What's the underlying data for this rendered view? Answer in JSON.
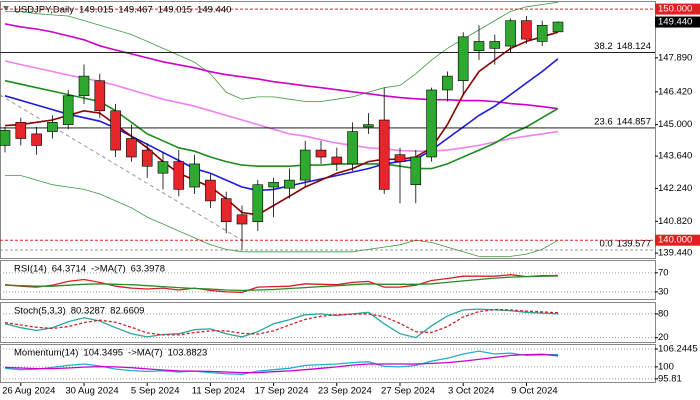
{
  "chart_data": [
    {
      "type": "candlestick",
      "title": "USDJPY,Daily",
      "close_label": "149.440",
      "up_color": "#2fa82f",
      "down_color": "#e5262a",
      "categories": [
        null,
        "26 Aug 2024",
        null,
        null,
        null,
        "30 Aug 2024",
        null,
        null,
        null,
        "5 Sep 2024",
        null,
        null,
        null,
        "11 Sep 2024",
        null,
        null,
        null,
        "17 Sep 2024",
        null,
        null,
        null,
        "23 Sep 2024",
        null,
        null,
        null,
        "27 Sep 2024",
        null,
        null,
        null,
        "3 Oct 2024",
        null,
        null,
        null,
        "9 Oct 2024",
        null,
        null
      ],
      "open": [
        144.1,
        145.1,
        144.6,
        144.7,
        145.0,
        146.25,
        146.9,
        145.6,
        144.4,
        143.9,
        142.9,
        143.4,
        142.3,
        142.6,
        141.8,
        141.1,
        140.8,
        142.3,
        142.25,
        142.6,
        143.9,
        143.6,
        143.3,
        144.9,
        145.2,
        143.7,
        142.4,
        143.6,
        146.5,
        146.9,
        148.2,
        148.3,
        148.4,
        149.5,
        148.6,
        149.015
      ],
      "high": [
        144.9,
        145.3,
        144.9,
        145.4,
        146.5,
        147.6,
        147.2,
        145.9,
        145.0,
        144.2,
        143.8,
        143.9,
        143.7,
        142.9,
        142.1,
        141.5,
        142.6,
        142.7,
        143.1,
        144.3,
        144.3,
        144.0,
        145.1,
        145.5,
        146.6,
        144.0,
        143.9,
        146.6,
        147.3,
        149.0,
        149.3,
        148.9,
        149.6,
        149.7,
        149.5,
        149.467
      ],
      "low": [
        143.8,
        144.1,
        143.7,
        144.4,
        144.8,
        145.9,
        145.3,
        143.6,
        143.4,
        142.7,
        142.2,
        141.9,
        142.0,
        141.4,
        140.3,
        139.6,
        140.4,
        141.0,
        141.8,
        142.3,
        143.3,
        143.0,
        143.0,
        144.6,
        142.0,
        141.6,
        141.6,
        143.4,
        146.0,
        146.3,
        147.8,
        147.6,
        148.1,
        148.5,
        148.4,
        149.015
      ],
      "close": [
        144.75,
        144.4,
        144.1,
        145.1,
        146.25,
        147.1,
        145.6,
        143.9,
        143.6,
        143.2,
        143.4,
        142.2,
        143.3,
        141.7,
        140.8,
        140.7,
        142.4,
        142.5,
        142.6,
        143.9,
        143.6,
        143.3,
        144.7,
        145.0,
        142.2,
        143.4,
        143.6,
        146.5,
        147.1,
        148.8,
        148.6,
        148.6,
        149.5,
        148.7,
        149.3,
        149.44
      ],
      "series": [
        {
          "color": "#3c9a3c",
          "width": 0.8,
          "values": [
            149.9,
            149.9,
            149.8,
            149.75,
            149.7,
            149.5,
            149.3,
            149.1,
            148.9,
            148.6,
            148.3,
            148.0,
            147.7,
            147.2,
            146.4,
            146.1,
            146.2,
            146.2,
            146.1,
            146.0,
            146.0,
            146.1,
            146.2,
            146.4,
            146.6,
            146.7,
            147.2,
            147.8,
            148.3,
            148.7,
            149.1,
            149.5,
            149.9,
            150.1,
            150.2,
            150.3
          ]
        },
        {
          "color": "#3c9a3c",
          "width": 0.8,
          "values": [
            142.8,
            142.8,
            142.6,
            142.4,
            142.3,
            142.2,
            142.0,
            141.7,
            141.4,
            141.0,
            140.7,
            140.4,
            140.1,
            139.8,
            139.6,
            139.5,
            139.5,
            139.5,
            139.5,
            139.5,
            139.5,
            139.5,
            139.5,
            139.6,
            139.7,
            139.8,
            140.0,
            139.9,
            139.7,
            139.5,
            139.3,
            139.3,
            139.3,
            139.4,
            139.6,
            140.0
          ]
        },
        {
          "color": "#ee82ee",
          "width": 1.6,
          "values": [
            147.76,
            147.6,
            147.45,
            147.3,
            147.15,
            147.0,
            146.88,
            146.7,
            146.5,
            146.3,
            146.1,
            145.95,
            145.8,
            145.6,
            145.4,
            145.2,
            145.0,
            144.8,
            144.6,
            144.5,
            144.35,
            144.2,
            144.1,
            144.0,
            143.95,
            143.88,
            143.85,
            143.85,
            143.9,
            144.0,
            144.1,
            144.25,
            144.4,
            144.5,
            144.6,
            144.7
          ]
        },
        {
          "color": "#cc00cc",
          "width": 1.6,
          "values": [
            149.36,
            149.23,
            149.14,
            149.01,
            148.84,
            148.67,
            148.41,
            148.23,
            148.06,
            147.89,
            147.72,
            147.59,
            147.46,
            147.29,
            147.16,
            147.07,
            146.98,
            146.86,
            146.77,
            146.68,
            146.6,
            146.51,
            146.42,
            146.34,
            146.25,
            146.17,
            146.12,
            146.08,
            146.08,
            146.04,
            146.04,
            146.0,
            145.91,
            145.86,
            145.78,
            145.69
          ]
        },
        {
          "color": "#1e8c1e",
          "width": 1.6,
          "values": [
            146.9,
            146.75,
            146.6,
            146.45,
            146.3,
            146.15,
            146.0,
            145.6,
            145.1,
            144.6,
            144.3,
            144.0,
            143.85,
            143.6,
            143.4,
            143.25,
            143.2,
            143.2,
            143.2,
            143.25,
            143.25,
            143.3,
            143.3,
            143.3,
            143.3,
            143.2,
            143.1,
            143.1,
            143.3,
            143.6,
            143.9,
            144.2,
            144.6,
            144.9,
            145.3,
            145.7
          ]
        },
        {
          "color": "#1a1adc",
          "width": 1.6,
          "values": [
            146.25,
            146.05,
            145.85,
            145.65,
            145.45,
            145.3,
            145.15,
            144.85,
            144.5,
            144.15,
            143.8,
            143.45,
            143.1,
            142.9,
            142.6,
            142.3,
            142.15,
            142.2,
            142.35,
            142.5,
            142.65,
            142.8,
            142.95,
            143.1,
            143.3,
            143.4,
            143.5,
            143.9,
            144.4,
            144.9,
            145.4,
            145.8,
            146.3,
            146.8,
            147.3,
            147.85
          ]
        },
        {
          "color": "#8b0000",
          "width": 1.6,
          "values": [
            144.96,
            145.0,
            145.1,
            145.2,
            145.4,
            145.6,
            145.5,
            145.0,
            144.5,
            144.0,
            143.4,
            142.9,
            142.6,
            142.3,
            141.8,
            141.2,
            141.1,
            141.5,
            141.9,
            142.3,
            142.6,
            142.9,
            143.1,
            143.4,
            143.5,
            143.5,
            143.6,
            144.0,
            145.0,
            146.3,
            147.3,
            147.8,
            148.3,
            148.6,
            148.8,
            149.0
          ]
        }
      ],
      "levels": [
        {
          "label": "38.2",
          "value": 148.124
        },
        {
          "label": "23.6",
          "value": 144.857
        },
        {
          "label": "0.0",
          "value": 139.577
        }
      ],
      "hlines": [
        {
          "value": 150,
          "label": "150.000"
        },
        {
          "value": 140,
          "label": "140.000"
        }
      ],
      "ylim": [
        139.23,
        150.35
      ],
      "yticks": [
        {
          "value": 147.89,
          "label": "147.890"
        },
        {
          "value": 146.42,
          "label": "146.420"
        },
        {
          "value": 145,
          "label": "145.000"
        },
        {
          "value": 143.64,
          "label": "143.640"
        },
        {
          "value": 142.24,
          "label": "142.240"
        },
        {
          "value": 140.82,
          "label": "140.820"
        },
        {
          "value": 139.44,
          "label": "139.440"
        }
      ],
      "grid": false
    },
    {
      "type": "line",
      "ylim": [
        15,
        97
      ],
      "yticks": [
        70,
        30
      ],
      "grid": true,
      "series": [
        {
          "name": "RSI(14)",
          "color": "#d42020",
          "values": [
            45,
            42,
            40,
            44,
            52,
            56,
            50,
            42,
            38,
            36,
            38,
            34,
            38,
            33,
            30,
            29,
            40,
            41,
            42,
            47,
            46,
            45,
            50,
            52,
            40,
            40,
            44,
            54,
            58,
            63,
            63,
            63,
            66,
            62,
            64,
            64.3714
          ]
        },
        {
          "name": "->MA(7)",
          "color": "#2a8a2a",
          "values": [
            44,
            43,
            42,
            42,
            44,
            46,
            47,
            46,
            45,
            43,
            41,
            39,
            37,
            36,
            34,
            33,
            34,
            35,
            37,
            39,
            41,
            43,
            45,
            47,
            46,
            46,
            46,
            47,
            50,
            53,
            56,
            59,
            61,
            62,
            63,
            63.3978
          ]
        }
      ]
    },
    {
      "type": "line",
      "ylim": [
        9,
        110
      ],
      "yticks": [
        80,
        20
      ],
      "grid": true,
      "series": [
        {
          "name": "Stoch(5,3,3)",
          "color": "#2aa6a0",
          "values": [
            55,
            45,
            38,
            45,
            60,
            70,
            62,
            45,
            30,
            22,
            28,
            30,
            40,
            42,
            30,
            22,
            35,
            55,
            65,
            78,
            80,
            76,
            80,
            84,
            55,
            30,
            20,
            50,
            75,
            90,
            92,
            90,
            88,
            84,
            82,
            80.3287
          ]
        },
        {
          "color": "#d42020",
          "dash": true,
          "values": [
            58,
            52,
            46,
            43,
            48,
            58,
            64,
            59,
            46,
            32,
            27,
            27,
            33,
            37,
            37,
            31,
            29,
            37,
            52,
            66,
            74,
            78,
            79,
            80,
            73,
            56,
            35,
            33,
            48,
            72,
            86,
            91,
            90,
            87,
            85,
            82.6609
          ]
        }
      ]
    },
    {
      "type": "line",
      "ylim": [
        94.7,
        108
      ],
      "yticks": [
        106.2445,
        100,
        95.81
      ],
      "grid": true,
      "series": [
        {
          "name": "Momentum(14)",
          "color": "#20b0d0",
          "values": [
            99.5,
            99,
            99.2,
            99.8,
            100.5,
            101,
            100.3,
            99.2,
            98.7,
            98.4,
            98.6,
            98.2,
            98.5,
            98,
            97.6,
            97.4,
            98.5,
            99,
            99.5,
            100.5,
            100.8,
            101,
            101.5,
            101.8,
            100.2,
            100,
            100.5,
            102,
            103,
            104.5,
            105.5,
            104.5,
            104.8,
            104,
            104.2,
            104.3495
          ]
        },
        {
          "name": "->MA(7)",
          "color": "#cc00cc",
          "values": [
            99.8,
            99.6,
            99.4,
            99.4,
            99.6,
            99.9,
            100.1,
            100,
            99.7,
            99.3,
            98.9,
            98.6,
            98.5,
            98.4,
            98.2,
            98,
            98,
            98.3,
            98.6,
            99,
            99.5,
            100,
            100.6,
            101,
            101,
            101,
            101,
            101.2,
            101.5,
            102,
            102.6,
            103.3,
            104,
            104.3,
            104.4,
            103.8823
          ]
        }
      ]
    }
  ]
}
